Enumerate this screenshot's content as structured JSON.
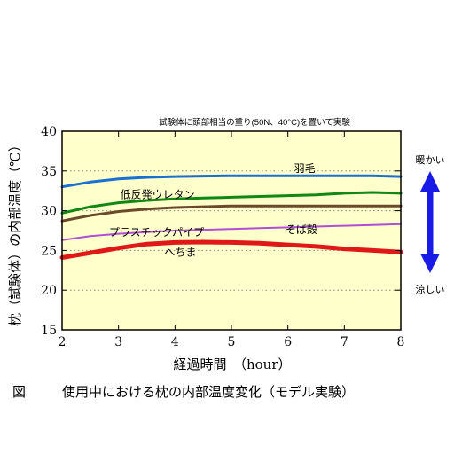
{
  "chart_data": {
    "type": "line",
    "title": "試験体に頭部相当の重り(50N、40°C)を置いて実験",
    "xlabel": "経過時間　（hour）",
    "ylabel": "枕（試験体）の内部温度（℃）",
    "xlim": [
      2,
      8
    ],
    "ylim": [
      15,
      40
    ],
    "x_ticks": [
      2,
      3,
      4,
      5,
      6,
      7,
      8
    ],
    "y_ticks": [
      15,
      20,
      25,
      30,
      35,
      40
    ],
    "grid": "horizontal-dotted",
    "plot_background": "#ffffcc",
    "x": [
      2,
      2.5,
      3,
      3.5,
      4,
      4.5,
      5,
      5.5,
      6,
      6.5,
      7,
      7.5,
      8
    ],
    "series": [
      {
        "name": "羽毛",
        "color": "#1a6fd1",
        "stroke": 3,
        "values": [
          33.0,
          33.6,
          34.0,
          34.2,
          34.3,
          34.35,
          34.4,
          34.4,
          34.4,
          34.4,
          34.4,
          34.4,
          34.3
        ]
      },
      {
        "name": "低反発ウレタン",
        "color": "#118811",
        "stroke": 3,
        "values": [
          29.7,
          30.5,
          31.0,
          31.3,
          31.5,
          31.6,
          31.7,
          31.8,
          31.9,
          32.0,
          32.2,
          32.3,
          32.2
        ]
      },
      {
        "name": "そば殻",
        "color": "#6b4a2a",
        "stroke": 3,
        "values": [
          28.7,
          29.4,
          29.9,
          30.2,
          30.4,
          30.5,
          30.6,
          30.6,
          30.6,
          30.6,
          30.6,
          30.6,
          30.6
        ]
      },
      {
        "name": "プラスチックパイプ",
        "color": "#b04fd6",
        "stroke": 2,
        "values": [
          26.3,
          26.8,
          27.1,
          27.3,
          27.5,
          27.6,
          27.7,
          27.8,
          27.9,
          28.0,
          28.1,
          28.2,
          28.3
        ]
      },
      {
        "name": "へちま",
        "color": "#e01818",
        "stroke": 5,
        "values": [
          24.1,
          24.7,
          25.3,
          25.8,
          26.0,
          26.05,
          26.0,
          25.9,
          25.7,
          25.5,
          25.2,
          25.0,
          24.8
        ]
      }
    ],
    "annotations": {
      "warm": "暖かい",
      "cool": "涼しい"
    }
  },
  "caption": {
    "label": "図",
    "text": "使用中における枕の内部温度変化（モデル実験）"
  }
}
